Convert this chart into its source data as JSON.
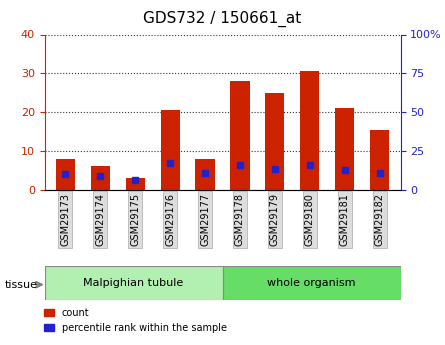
{
  "title": "GDS732 / 150661_at",
  "samples": [
    "GSM29173",
    "GSM29174",
    "GSM29175",
    "GSM29176",
    "GSM29177",
    "GSM29178",
    "GSM29179",
    "GSM29180",
    "GSM29181",
    "GSM29182"
  ],
  "counts": [
    8,
    6,
    3,
    20.5,
    8,
    28,
    25,
    30.5,
    21,
    15.5
  ],
  "percentiles": [
    10,
    9,
    6.5,
    17,
    11,
    16,
    13.5,
    16,
    13,
    10.5
  ],
  "tissue_groups": [
    {
      "label": "Malpighian tubule",
      "start": 0,
      "end": 5,
      "color": "#b2f0b2"
    },
    {
      "label": "whole organism",
      "start": 5,
      "end": 10,
      "color": "#66dd66"
    }
  ],
  "left_ylim": [
    0,
    40
  ],
  "right_ylim": [
    0,
    100
  ],
  "left_yticks": [
    0,
    10,
    20,
    30,
    40
  ],
  "right_yticks": [
    0,
    25,
    50,
    75,
    100
  ],
  "right_yticklabels": [
    "0",
    "25",
    "50",
    "75",
    "100%"
  ],
  "bar_color": "#cc2200",
  "dot_color": "#2222cc",
  "grid_color": "#333333",
  "bg_color": "#ffffff",
  "bar_width": 0.55,
  "left_axis_color": "#cc2200",
  "right_axis_color": "#2222cc"
}
